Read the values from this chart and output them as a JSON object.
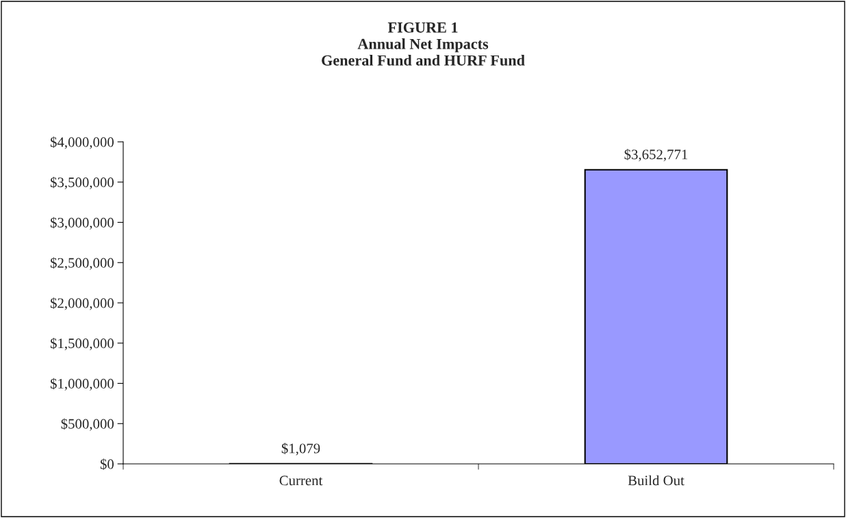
{
  "chart_data": {
    "type": "bar",
    "title": "FIGURE 1\nAnnual Net Impacts\nGeneral Fund and HURF Fund",
    "categories": [
      "Current",
      "Build Out"
    ],
    "values": [
      1079,
      3652771
    ],
    "value_labels": [
      "$1,079",
      "$3,652,771"
    ],
    "color": "#9999ff",
    "ylim": [
      0,
      4000000
    ],
    "yticks": [
      {
        "value": 0,
        "label": "$0"
      },
      {
        "value": 500000,
        "label": "$500,000"
      },
      {
        "value": 1000000,
        "label": "$1,000,000"
      },
      {
        "value": 1500000,
        "label": "$1,500,000"
      },
      {
        "value": 2000000,
        "label": "$2,000,000"
      },
      {
        "value": 2500000,
        "label": "$2,500,000"
      },
      {
        "value": 3000000,
        "label": "$3,000,000"
      },
      {
        "value": 3500000,
        "label": "$3,500,000"
      },
      {
        "value": 4000000,
        "label": "$4,000,000"
      }
    ],
    "grid": false,
    "legend": false
  }
}
